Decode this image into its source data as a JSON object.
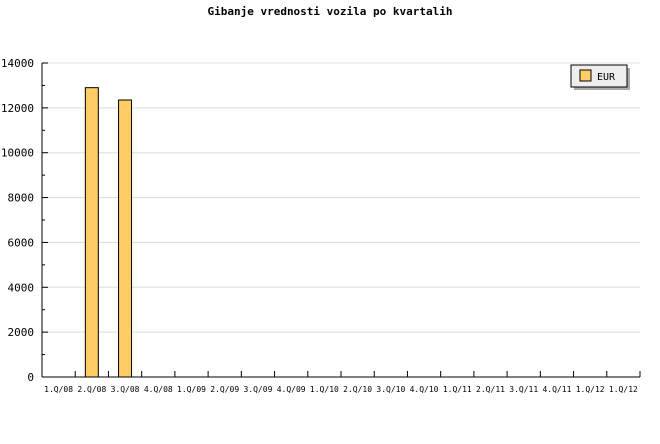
{
  "chart_data": {
    "type": "bar",
    "title": "Gibanje vrednosti vozila po kvartalih",
    "xlabel": "",
    "ylabel": "",
    "categories": [
      "1.Q/08",
      "2.Q/08",
      "3.Q/08",
      "4.Q/08",
      "1.Q/09",
      "2.Q/09",
      "3.Q/09",
      "4.Q/09",
      "1.Q/10",
      "2.Q/10",
      "3.Q/10",
      "4.Q/10",
      "1.Q/11",
      "2.Q/11",
      "3.Q/11",
      "4.Q/11",
      "1.Q/12",
      "1.Q/12"
    ],
    "series": [
      {
        "name": "EUR",
        "color": "#ffcc66",
        "values": [
          0,
          12900,
          12350,
          0,
          0,
          0,
          0,
          0,
          0,
          0,
          0,
          0,
          0,
          0,
          0,
          0,
          0,
          0
        ]
      }
    ],
    "ylim": [
      0,
      14000
    ],
    "yticks": [
      0,
      2000,
      4000,
      6000,
      8000,
      10000,
      12000,
      14000
    ],
    "grid": true,
    "legend": "top-right"
  }
}
